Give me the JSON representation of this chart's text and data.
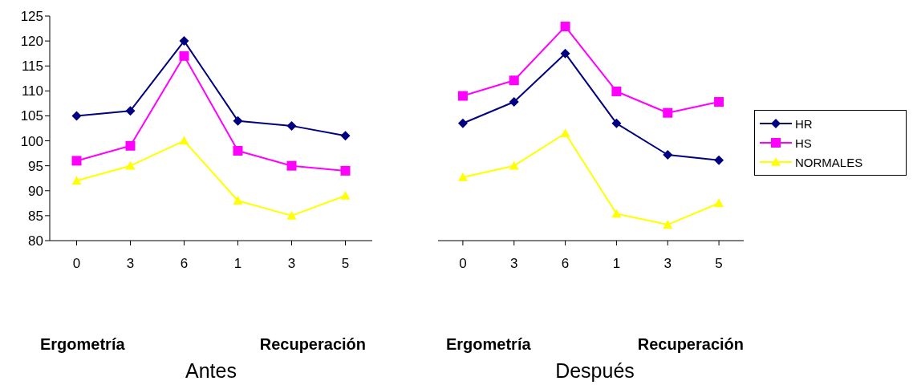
{
  "chart_data": [
    {
      "type": "line",
      "xlabel": "Antes",
      "annotations": [
        "Ergometría",
        "Recuperación"
      ],
      "categories": [
        "0",
        "3",
        "6",
        "1",
        "3",
        "5"
      ],
      "ylim": [
        80,
        125
      ],
      "yticks": [
        80,
        85,
        90,
        95,
        100,
        105,
        110,
        115,
        120,
        125
      ],
      "grid": false,
      "legend": false,
      "series": [
        {
          "color": "#000080",
          "marker": "diamond",
          "values": [
            105,
            106,
            120,
            104,
            103,
            101
          ]
        },
        {
          "color": "#ff00ff",
          "marker": "square",
          "values": [
            96,
            99,
            117,
            98,
            95,
            94
          ]
        },
        {
          "color": "#ffff00",
          "marker": "triangle",
          "values": [
            92,
            95,
            100,
            88,
            85,
            89
          ]
        }
      ]
    },
    {
      "type": "line",
      "xlabel": "Después",
      "annotations": [
        "Ergometría",
        "Recuperación"
      ],
      "categories": [
        "0",
        "3",
        "6",
        "1",
        "3",
        "5"
      ],
      "ylim": [
        80,
        125
      ],
      "tick_labels": "x",
      "grid": false,
      "legend": "right",
      "series": [
        {
          "name": "HR",
          "color": "#000080",
          "marker": "diamond",
          "values": [
            103.5,
            107.8,
            117.5,
            103.5,
            97.2,
            96.1
          ]
        },
        {
          "name": "HS",
          "color": "#ff00ff",
          "marker": "square",
          "values": [
            109,
            112.1,
            122.9,
            109.9,
            105.6,
            107.8
          ]
        },
        {
          "name": "NORMALES",
          "color": "#ffff00",
          "marker": "triangle",
          "values": [
            92.7,
            95,
            101.5,
            85.4,
            83.2,
            87.5
          ]
        }
      ]
    }
  ]
}
